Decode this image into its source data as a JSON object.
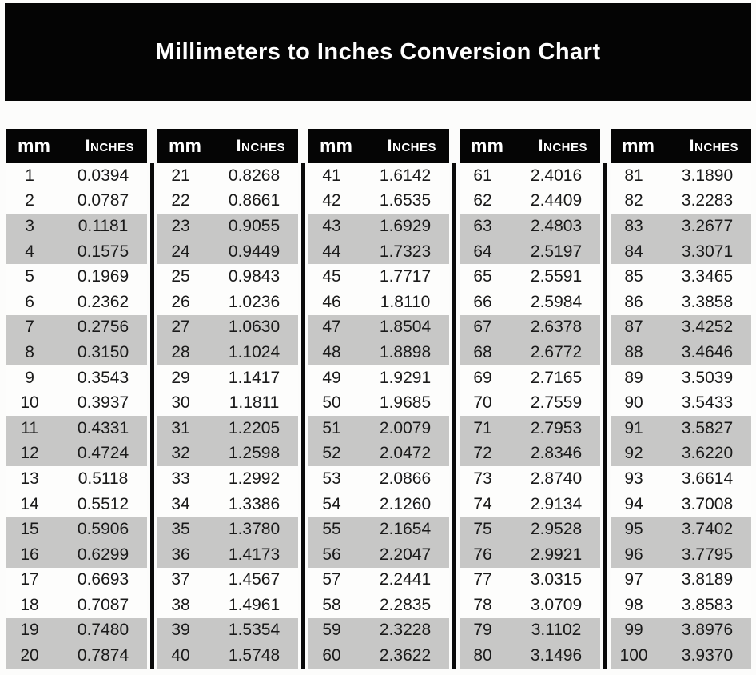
{
  "title": "Millimeters to Inches Conversion Chart",
  "colors": {
    "banner_background": "#040404",
    "header_background": "#050505",
    "header_text": "#ffffff",
    "stripe_gray": "#c7c7c6",
    "row_white": "#fdfdfc",
    "data_text": "#1a1a1a",
    "divider_black": "#0a0a0a"
  },
  "chart_data": {
    "type": "table",
    "title": "Millimeters to Inches Conversion Chart",
    "column_headers": [
      "mm",
      "Inches"
    ],
    "layout": {
      "group_count": 5,
      "rows_per_group": 20,
      "stripe_pattern": "two white rows alternating with two gray rows",
      "dividers": "black vertical rules between column groups"
    },
    "groups": [
      {
        "rows": [
          [
            "1",
            "0.0394"
          ],
          [
            "2",
            "0.0787"
          ],
          [
            "3",
            "0.1181"
          ],
          [
            "4",
            "0.1575"
          ],
          [
            "5",
            "0.1969"
          ],
          [
            "6",
            "0.2362"
          ],
          [
            "7",
            "0.2756"
          ],
          [
            "8",
            "0.3150"
          ],
          [
            "9",
            "0.3543"
          ],
          [
            "10",
            "0.3937"
          ],
          [
            "11",
            "0.4331"
          ],
          [
            "12",
            "0.4724"
          ],
          [
            "13",
            "0.5118"
          ],
          [
            "14",
            "0.5512"
          ],
          [
            "15",
            "0.5906"
          ],
          [
            "16",
            "0.6299"
          ],
          [
            "17",
            "0.6693"
          ],
          [
            "18",
            "0.7087"
          ],
          [
            "19",
            "0.7480"
          ],
          [
            "20",
            "0.7874"
          ]
        ]
      },
      {
        "rows": [
          [
            "21",
            "0.8268"
          ],
          [
            "22",
            "0.8661"
          ],
          [
            "23",
            "0.9055"
          ],
          [
            "24",
            "0.9449"
          ],
          [
            "25",
            "0.9843"
          ],
          [
            "26",
            "1.0236"
          ],
          [
            "27",
            "1.0630"
          ],
          [
            "28",
            "1.1024"
          ],
          [
            "29",
            "1.1417"
          ],
          [
            "30",
            "1.1811"
          ],
          [
            "31",
            "1.2205"
          ],
          [
            "32",
            "1.2598"
          ],
          [
            "33",
            "1.2992"
          ],
          [
            "34",
            "1.3386"
          ],
          [
            "35",
            "1.3780"
          ],
          [
            "36",
            "1.4173"
          ],
          [
            "37",
            "1.4567"
          ],
          [
            "38",
            "1.4961"
          ],
          [
            "39",
            "1.5354"
          ],
          [
            "40",
            "1.5748"
          ]
        ]
      },
      {
        "rows": [
          [
            "41",
            "1.6142"
          ],
          [
            "42",
            "1.6535"
          ],
          [
            "43",
            "1.6929"
          ],
          [
            "44",
            "1.7323"
          ],
          [
            "45",
            "1.7717"
          ],
          [
            "46",
            "1.8110"
          ],
          [
            "47",
            "1.8504"
          ],
          [
            "48",
            "1.8898"
          ],
          [
            "49",
            "1.9291"
          ],
          [
            "50",
            "1.9685"
          ],
          [
            "51",
            "2.0079"
          ],
          [
            "52",
            "2.0472"
          ],
          [
            "53",
            "2.0866"
          ],
          [
            "54",
            "2.1260"
          ],
          [
            "55",
            "2.1654"
          ],
          [
            "56",
            "2.2047"
          ],
          [
            "57",
            "2.2441"
          ],
          [
            "58",
            "2.2835"
          ],
          [
            "59",
            "2.3228"
          ],
          [
            "60",
            "2.3622"
          ]
        ]
      },
      {
        "rows": [
          [
            "61",
            "2.4016"
          ],
          [
            "62",
            "2.4409"
          ],
          [
            "63",
            "2.4803"
          ],
          [
            "64",
            "2.5197"
          ],
          [
            "65",
            "2.5591"
          ],
          [
            "66",
            "2.5984"
          ],
          [
            "67",
            "2.6378"
          ],
          [
            "68",
            "2.6772"
          ],
          [
            "69",
            "2.7165"
          ],
          [
            "70",
            "2.7559"
          ],
          [
            "71",
            "2.7953"
          ],
          [
            "72",
            "2.8346"
          ],
          [
            "73",
            "2.8740"
          ],
          [
            "74",
            "2.9134"
          ],
          [
            "75",
            "2.9528"
          ],
          [
            "76",
            "2.9921"
          ],
          [
            "77",
            "3.0315"
          ],
          [
            "78",
            "3.0709"
          ],
          [
            "79",
            "3.1102"
          ],
          [
            "80",
            "3.1496"
          ]
        ]
      },
      {
        "rows": [
          [
            "81",
            "3.1890"
          ],
          [
            "82",
            "3.2283"
          ],
          [
            "83",
            "3.2677"
          ],
          [
            "84",
            "3.3071"
          ],
          [
            "85",
            "3.3465"
          ],
          [
            "86",
            "3.3858"
          ],
          [
            "87",
            "3.4252"
          ],
          [
            "88",
            "3.4646"
          ],
          [
            "89",
            "3.5039"
          ],
          [
            "90",
            "3.5433"
          ],
          [
            "91",
            "3.5827"
          ],
          [
            "92",
            "3.6220"
          ],
          [
            "93",
            "3.6614"
          ],
          [
            "94",
            "3.7008"
          ],
          [
            "95",
            "3.7402"
          ],
          [
            "96",
            "3.7795"
          ],
          [
            "97",
            "3.8189"
          ],
          [
            "98",
            "3.8583"
          ],
          [
            "99",
            "3.8976"
          ],
          [
            "100",
            "3.9370"
          ]
        ]
      }
    ]
  }
}
